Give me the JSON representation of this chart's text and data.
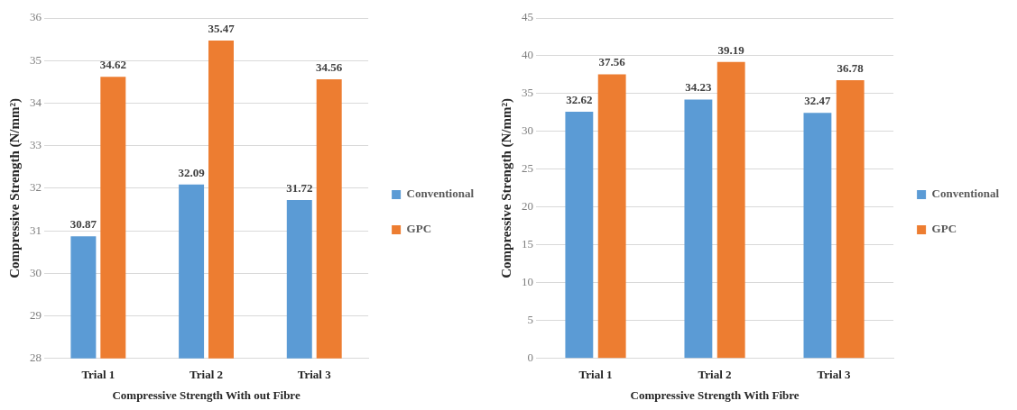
{
  "chart_data": [
    {
      "type": "bar",
      "xlabel": "Compressive Strength With out Fibre",
      "ylabel": "Compressive Strength (N/mm²)",
      "categories": [
        "Trial 1",
        "Trial 2",
        "Trial 3"
      ],
      "series": [
        {
          "name": "Conventional",
          "color": "#5b9bd5",
          "values": [
            30.87,
            32.09,
            31.72
          ]
        },
        {
          "name": "GPC",
          "color": "#ed7d31",
          "values": [
            34.62,
            35.47,
            34.56
          ]
        }
      ],
      "ylim": [
        28,
        36
      ],
      "yticks": [
        28,
        29,
        30,
        31,
        32,
        33,
        34,
        35,
        36
      ],
      "grid": "y",
      "legend": "right",
      "data_labels": true
    },
    {
      "type": "bar",
      "xlabel": "Compressive Strength With Fibre",
      "ylabel": "Compressive Strength (N/mm²)",
      "categories": [
        "Trial 1",
        "Trial 2",
        "Trial 3"
      ],
      "series": [
        {
          "name": "Conventional",
          "color": "#5b9bd5",
          "values": [
            32.62,
            34.23,
            32.47
          ]
        },
        {
          "name": "GPC",
          "color": "#ed7d31",
          "values": [
            37.56,
            39.19,
            36.78
          ]
        }
      ],
      "ylim": [
        0,
        45
      ],
      "yticks": [
        0,
        5,
        10,
        15,
        20,
        25,
        30,
        35,
        40,
        45
      ],
      "grid": "y",
      "legend": "right",
      "data_labels": true
    }
  ]
}
